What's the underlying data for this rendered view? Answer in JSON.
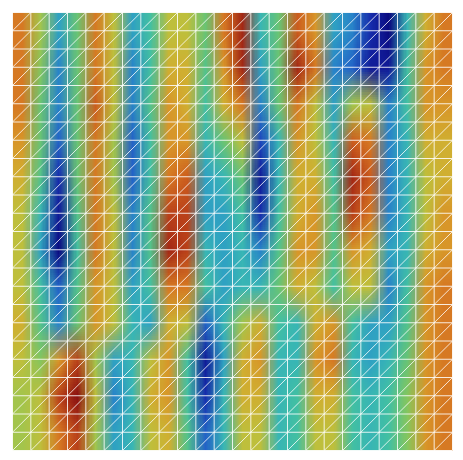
{
  "chart_data": {
    "type": "heatmap",
    "color": "jet",
    "tick_labels": false,
    "zlim": [
      -1,
      1
    ],
    "cells": [
      [
        0.6,
        0.2,
        -0.4,
        0,
        0.6,
        0.3,
        -0.4,
        -0.2,
        0.3,
        0.3,
        0,
        0.6,
        0.9,
        -0.3,
        0,
        0.7,
        0.5,
        -0.4,
        -0.5,
        -0.8,
        -1,
        -0.3,
        0.4,
        0.6
      ],
      [
        0.6,
        0.1,
        -0.5,
        0,
        0.6,
        0.3,
        -0.5,
        -0.2,
        0.4,
        0.4,
        -0.1,
        0.5,
        0.9,
        -0.4,
        0,
        0.9,
        0.6,
        -0.5,
        -0.6,
        -0.9,
        -0.9,
        -0.2,
        0.5,
        0.6
      ],
      [
        0.6,
        0,
        -0.5,
        0,
        0.7,
        0.3,
        -0.5,
        -0.1,
        0.5,
        0.4,
        -0.2,
        0.4,
        0.6,
        -0.5,
        0,
        0.6,
        0.3,
        -0.4,
        0.2,
        0.3,
        -0.5,
        -0.2,
        0.5,
        0.5
      ],
      [
        0.5,
        0,
        -0.6,
        0,
        0.6,
        0.2,
        -0.6,
        -0.2,
        0.5,
        0.5,
        -0.3,
        0,
        0.3,
        -0.7,
        -0.3,
        0.5,
        0.3,
        -0.3,
        0.7,
        0.6,
        -0.5,
        -0.3,
        0.4,
        0.4
      ],
      [
        0.4,
        -0.1,
        -0.8,
        0,
        0.6,
        0.2,
        -0.6,
        -0.2,
        0.6,
        0.7,
        -0.4,
        -0.3,
        0,
        -0.9,
        -0.3,
        0.4,
        0.4,
        -0.2,
        0.9,
        0.7,
        -0.5,
        -0.3,
        0.3,
        0.4
      ],
      [
        0.3,
        -0.3,
        -0.9,
        -0.1,
        0.6,
        0.3,
        -0.5,
        -0.1,
        0.8,
        0.8,
        -0.4,
        -0.4,
        -0.2,
        -0.8,
        -0.2,
        0.4,
        0.5,
        -0.1,
        0.8,
        0.6,
        -0.5,
        -0.3,
        0.3,
        0.5
      ],
      [
        0.3,
        -0.4,
        -1,
        -0.2,
        0.6,
        0.3,
        -0.5,
        -0.1,
        0.9,
        0.8,
        -0.3,
        -0.4,
        -0.3,
        -0.5,
        -0.1,
        0.5,
        0.5,
        -0.1,
        0.5,
        0.4,
        -0.4,
        -0.3,
        0.4,
        0.5
      ],
      [
        0.3,
        -0.2,
        -0.6,
        -0.1,
        0.5,
        0.3,
        -0.4,
        -0.2,
        0.6,
        0.6,
        -0.2,
        -0.4,
        -0.3,
        -0.3,
        0,
        0.4,
        0.3,
        -0.2,
        0.3,
        0.3,
        -0.5,
        -0.2,
        0.5,
        0.6
      ],
      [
        0.4,
        -0.1,
        -0.5,
        0,
        0.5,
        0.3,
        -0.3,
        -0.4,
        0.4,
        0.3,
        -0.6,
        -0.3,
        0.2,
        0.4,
        -0.2,
        -0.3,
        0.4,
        0.5,
        -0.2,
        -0.4,
        -0.4,
        -0.1,
        0.5,
        0.6
      ],
      [
        0.3,
        0.1,
        0.5,
        0.8,
        0.2,
        -0.4,
        -0.3,
        0.3,
        0.5,
        -0.2,
        -0.9,
        -0.4,
        0.4,
        0.5,
        -0.3,
        -0.3,
        0.5,
        0.6,
        -0.3,
        -0.4,
        -0.3,
        0,
        0.5,
        0.6
      ],
      [
        0.2,
        0.3,
        0.8,
        1,
        0.3,
        -0.5,
        -0.3,
        0.4,
        0.5,
        -0.2,
        -0.8,
        -0.3,
        0.4,
        0.4,
        -0.3,
        -0.2,
        0.4,
        0.4,
        -0.2,
        -0.3,
        -0.2,
        0.1,
        0.5,
        0.6
      ],
      [
        0.2,
        0.3,
        0.6,
        0.8,
        0.2,
        -0.4,
        -0.3,
        0.3,
        0.4,
        -0.1,
        -0.6,
        -0.3,
        0.3,
        0.3,
        -0.3,
        -0.2,
        0.3,
        0.3,
        -0.2,
        -0.3,
        -0.2,
        0.1,
        0.5,
        0.6
      ]
    ]
  }
}
